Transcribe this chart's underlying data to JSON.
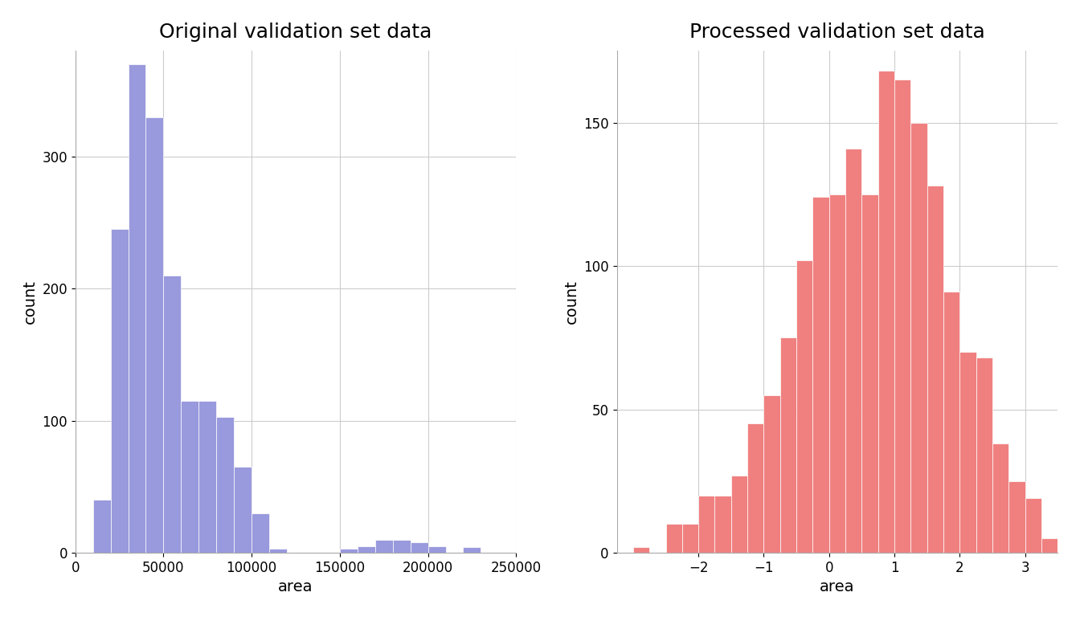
{
  "left_title": "Original validation set data",
  "right_title": "Processed validation set data",
  "left_xlabel": "area",
  "right_xlabel": "area",
  "left_ylabel": "count",
  "right_ylabel": "count",
  "bar_color_left": "#9999dd",
  "bar_color_right": "#f08080",
  "background_color": "#ffffff",
  "grid_color": "#cccccc",
  "left_bar_edges": [
    10000,
    20000,
    30000,
    40000,
    50000,
    60000,
    70000,
    80000,
    90000,
    100000,
    110000,
    120000,
    130000,
    140000,
    150000,
    160000,
    170000,
    180000,
    190000,
    200000,
    210000,
    220000,
    230000,
    240000,
    250000
  ],
  "left_bar_heights": [
    40,
    245,
    370,
    330,
    210,
    115,
    115,
    103,
    65,
    30,
    3,
    0,
    0,
    0,
    3,
    5,
    10,
    10,
    8,
    5,
    0,
    4,
    0,
    0
  ],
  "right_bar_edges": [
    -3.0,
    -2.75,
    -2.5,
    -2.25,
    -2.0,
    -1.75,
    -1.5,
    -1.25,
    -1.0,
    -0.75,
    -0.5,
    -0.25,
    0.0,
    0.25,
    0.5,
    0.75,
    1.0,
    1.25,
    1.5,
    1.75,
    2.0,
    2.25,
    2.5,
    2.75,
    3.0,
    3.25,
    3.5
  ],
  "right_bar_heights": [
    2,
    0,
    10,
    10,
    20,
    20,
    27,
    45,
    55,
    75,
    102,
    124,
    125,
    141,
    125,
    168,
    165,
    150,
    128,
    91,
    70,
    68,
    38,
    25,
    19,
    5
  ],
  "left_xlim": [
    0,
    250000
  ],
  "left_ylim": [
    0,
    380
  ],
  "right_xlim": [
    -3.25,
    3.5
  ],
  "right_ylim": [
    0,
    175
  ],
  "left_xticks": [
    0,
    50000,
    100000,
    150000,
    200000,
    250000
  ],
  "left_xticklabels": [
    "0",
    "50000",
    "100000",
    "150000",
    "200000",
    "250000"
  ],
  "right_xticks": [
    -2,
    -1,
    0,
    1,
    2,
    3
  ],
  "left_yticks": [
    0,
    100,
    200,
    300
  ],
  "right_yticks": [
    0,
    50,
    100,
    150
  ],
  "title_fontsize": 18,
  "axis_label_fontsize": 14,
  "tick_fontsize": 12
}
